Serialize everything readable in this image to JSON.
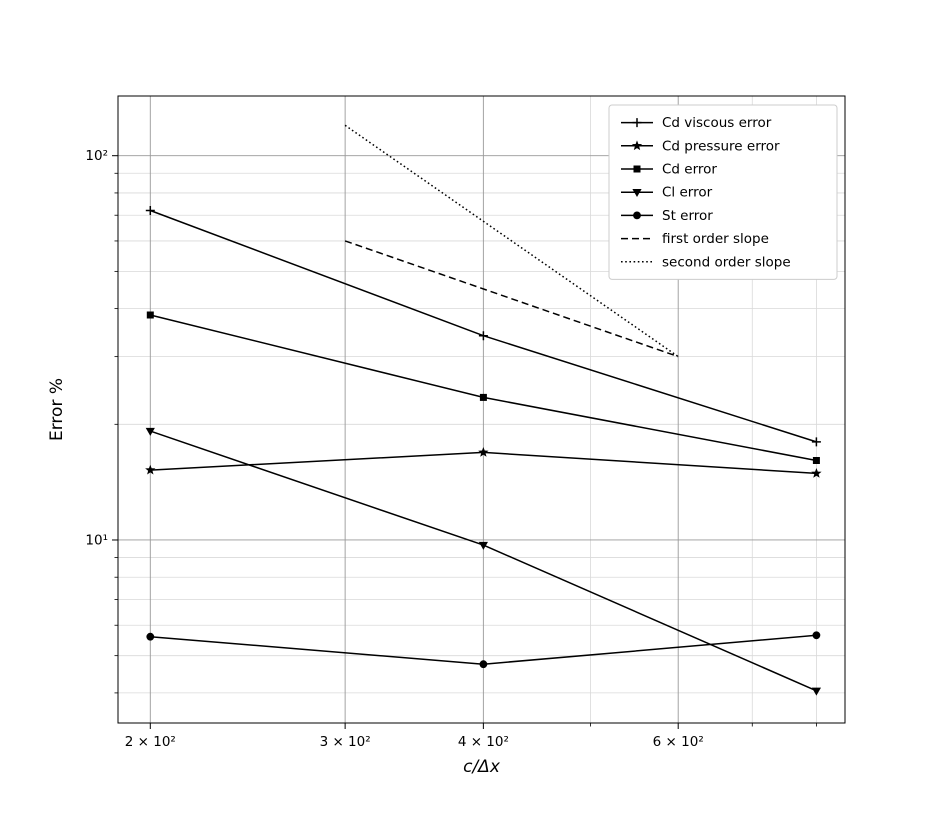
{
  "chart_data": {
    "type": "line",
    "title": "",
    "xlabel": "c/Δx",
    "ylabel": "Error %",
    "x_scale": "log",
    "y_scale": "log",
    "xlim": [
      187,
      849
    ],
    "ylim": [
      3.34,
      143
    ],
    "grid": "both",
    "legend_position": "upper right",
    "x_ticks": [
      {
        "value": 200,
        "label": "2 × 10²"
      },
      {
        "value": 300,
        "label": "3 × 10²"
      },
      {
        "value": 400,
        "label": "4 × 10²"
      },
      {
        "value": 600,
        "label": "6 × 10²"
      }
    ],
    "x_minor_ticks": [
      500,
      700,
      800
    ],
    "y_ticks": [
      {
        "value": 10,
        "label": "10¹"
      },
      {
        "value": 100,
        "label": "10²"
      }
    ],
    "y_minor_ticks": [
      4,
      5,
      6,
      7,
      8,
      9,
      20,
      30,
      40,
      50,
      60,
      70,
      80,
      90
    ],
    "grid_colors": {
      "major": "#999999",
      "minor": "#d9d9d9"
    },
    "series": [
      {
        "name": "Cd viscous error",
        "marker": "plus",
        "linestyle": "solid",
        "color": "#000000",
        "x": [
          200,
          400,
          800
        ],
        "y": [
          72,
          34,
          18
        ]
      },
      {
        "name": "Cd pressure error",
        "marker": "star",
        "linestyle": "solid",
        "color": "#000000",
        "x": [
          200,
          400,
          800
        ],
        "y": [
          15.2,
          16.9,
          14.9
        ]
      },
      {
        "name": "Cd error",
        "marker": "square",
        "linestyle": "solid",
        "color": "#000000",
        "x": [
          200,
          400,
          800
        ],
        "y": [
          38.5,
          23.5,
          16.1
        ]
      },
      {
        "name": "Cl error",
        "marker": "triangle-down",
        "linestyle": "solid",
        "color": "#000000",
        "x": [
          200,
          400,
          800
        ],
        "y": [
          19.2,
          9.7,
          4.05
        ]
      },
      {
        "name": "St error",
        "marker": "circle",
        "linestyle": "solid",
        "color": "#000000",
        "x": [
          200,
          400,
          800
        ],
        "y": [
          5.6,
          4.75,
          5.65
        ]
      },
      {
        "name": "first order slope",
        "marker": "none",
        "linestyle": "dashed",
        "color": "#000000",
        "x": [
          300,
          600
        ],
        "y": [
          60,
          30
        ]
      },
      {
        "name": "second order slope",
        "marker": "none",
        "linestyle": "dotted",
        "color": "#000000",
        "x": [
          300,
          600
        ],
        "y": [
          120,
          30
        ]
      }
    ]
  }
}
